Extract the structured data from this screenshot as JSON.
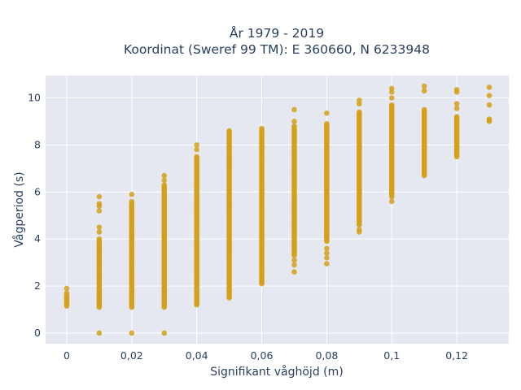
{
  "chart_data": {
    "type": "scatter",
    "title_lines": [
      "År 1979 - 2019",
      "Koordinat (Sweref 99 TM): E 360660, N 6233948"
    ],
    "xlabel": "Signifikant våghöjd (m)",
    "ylabel": "Vågperiod (s)",
    "xlim": [
      -0.0065,
      0.136
    ],
    "ylim": [
      -0.45,
      10.95
    ],
    "x_ticks": [
      {
        "value": 0,
        "label": "0"
      },
      {
        "value": 0.02,
        "label": "0,02"
      },
      {
        "value": 0.04,
        "label": "0,04"
      },
      {
        "value": 0.06,
        "label": "0,06"
      },
      {
        "value": 0.08,
        "label": "0,08"
      },
      {
        "value": 0.1,
        "label": "0,1"
      },
      {
        "value": 0.12,
        "label": "0,12"
      }
    ],
    "y_ticks": [
      {
        "value": 0,
        "label": "0"
      },
      {
        "value": 2,
        "label": "2"
      },
      {
        "value": 4,
        "label": "4"
      },
      {
        "value": 6,
        "label": "6"
      },
      {
        "value": 8,
        "label": "8"
      },
      {
        "value": 10,
        "label": "10"
      }
    ],
    "grid": true,
    "legend": false,
    "colors": {
      "marker": "#d4a019",
      "plot_bg": "#e5e8f1",
      "grid": "#ffffff",
      "text": "#2a3f5f"
    },
    "columns": [
      {
        "x": 0,
        "y_range": [
          1.15,
          1.6
        ],
        "outliers": [
          1.9,
          1.7
        ]
      },
      {
        "x": 0.01,
        "y_range": [
          1.1,
          4.0
        ],
        "outliers": [
          0,
          4.3,
          4.5,
          5.2,
          5.4,
          5.5,
          5.8
        ]
      },
      {
        "x": 0.02,
        "y_range": [
          1.1,
          5.5
        ],
        "outliers": [
          0,
          5.6,
          5.9
        ]
      },
      {
        "x": 0.03,
        "y_range": [
          1.1,
          6.3
        ],
        "outliers": [
          0,
          6.5,
          6.7
        ]
      },
      {
        "x": 0.04,
        "y_range": [
          1.2,
          7.5
        ],
        "outliers": [
          7.8,
          8.0
        ]
      },
      {
        "x": 0.05,
        "y_range": [
          1.5,
          8.6
        ],
        "outliers": []
      },
      {
        "x": 0.06,
        "y_range": [
          2.1,
          8.7
        ],
        "outliers": []
      },
      {
        "x": 0.07,
        "y_range": [
          3.3,
          8.8
        ],
        "outliers": [
          2.6,
          2.9,
          3.1,
          9.0,
          9.5
        ]
      },
      {
        "x": 0.08,
        "y_range": [
          3.9,
          8.9
        ],
        "outliers": [
          2.95,
          3.2,
          3.4,
          3.6,
          9.35
        ]
      },
      {
        "x": 0.09,
        "y_range": [
          4.6,
          9.4
        ],
        "outliers": [
          4.3,
          4.4,
          9.75,
          9.9
        ]
      },
      {
        "x": 0.1,
        "y_range": [
          5.8,
          9.7
        ],
        "outliers": [
          5.6,
          10.0,
          10.25,
          10.4
        ]
      },
      {
        "x": 0.11,
        "y_range": [
          6.7,
          9.5
        ],
        "outliers": [
          10.3,
          10.5
        ]
      },
      {
        "x": 0.12,
        "y_range": [
          7.5,
          9.2
        ],
        "outliers": [
          9.55,
          9.75,
          10.25,
          10.35
        ]
      },
      {
        "x": 0.13,
        "y_range": [
          9.0,
          9.1
        ],
        "outliers": [
          9.7,
          10.1,
          10.45
        ]
      }
    ]
  }
}
